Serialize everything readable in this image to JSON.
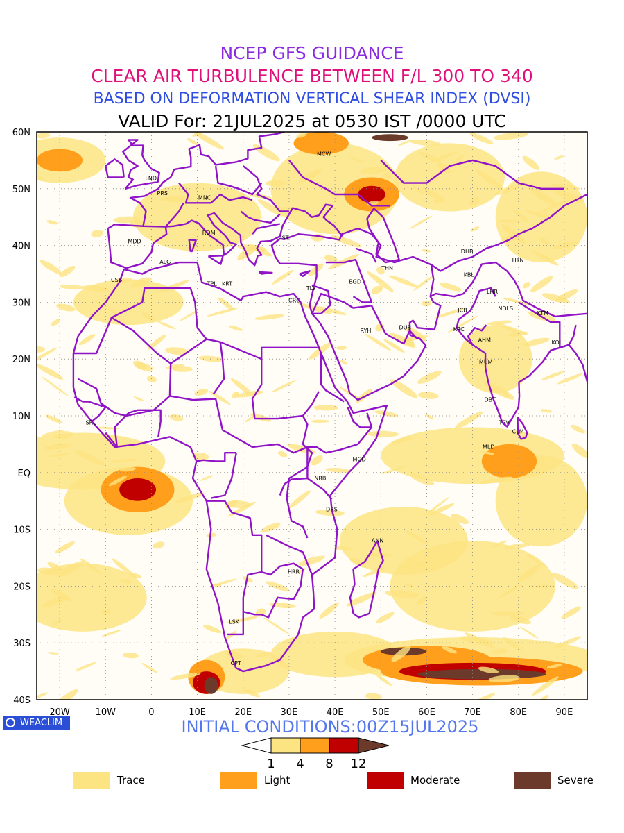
{
  "titles": {
    "line1": "NCEP GFS GUIDANCE",
    "line2": "CLEAR AIR TURBULENCE BETWEEN F/L 300 TO 340",
    "line3": "BASED ON DEFORMATION VERTICAL SHEAR INDEX (DVSI)",
    "line4": "VALID For: 21JUL2025 at 0530 IST /0000 UTC"
  },
  "colors": {
    "line1": "#8a2be2",
    "line2": "#e0107a",
    "line3": "#2f4de0",
    "line4": "#000000",
    "init": "#5577ee",
    "trace": "#fde482",
    "light": "#ff9f1c",
    "moderate": "#c00000",
    "severe": "#6b3a2a",
    "boundaries": "#9013c7"
  },
  "map": {
    "lat_labels": [
      "60N",
      "50N",
      "40N",
      "30N",
      "20N",
      "10N",
      "EQ",
      "10S",
      "20S",
      "30S",
      "40S"
    ],
    "lon_labels": [
      "20W",
      "10W",
      "0",
      "10E",
      "20E",
      "30E",
      "40E",
      "50E",
      "60E",
      "70E",
      "80E",
      "90E"
    ],
    "lat_range": [
      -40,
      60
    ],
    "lon_range": [
      -25,
      95
    ],
    "grid": true,
    "stations": [
      {
        "code": "MCW",
        "lon": 37.6,
        "lat": 55.8
      },
      {
        "code": "LND",
        "lon": -0.1,
        "lat": 51.5
      },
      {
        "code": "PRS",
        "lon": 2.4,
        "lat": 48.9
      },
      {
        "code": "MNC",
        "lon": 11.6,
        "lat": 48.1
      },
      {
        "code": "ROM",
        "lon": 12.5,
        "lat": 41.9
      },
      {
        "code": "MDD",
        "lon": -3.7,
        "lat": 40.4
      },
      {
        "code": "IST",
        "lon": 29.0,
        "lat": 41.0
      },
      {
        "code": "ALG",
        "lon": 3.0,
        "lat": 36.8
      },
      {
        "code": "CSB",
        "lon": -7.6,
        "lat": 33.6
      },
      {
        "code": "TPL",
        "lon": 13.2,
        "lat": 32.9
      },
      {
        "code": "KRT",
        "lon": 16.5,
        "lat": 32.9
      },
      {
        "code": "TLV",
        "lon": 34.8,
        "lat": 32.1
      },
      {
        "code": "CRO",
        "lon": 31.2,
        "lat": 30.0
      },
      {
        "code": "BGD",
        "lon": 44.4,
        "lat": 33.3
      },
      {
        "code": "THN",
        "lon": 51.4,
        "lat": 35.7
      },
      {
        "code": "RYH",
        "lon": 46.7,
        "lat": 24.7
      },
      {
        "code": "DUB",
        "lon": 55.3,
        "lat": 25.2
      },
      {
        "code": "DHB",
        "lon": 68.8,
        "lat": 38.6
      },
      {
        "code": "HTN",
        "lon": 79.9,
        "lat": 37.1
      },
      {
        "code": "KBL",
        "lon": 69.2,
        "lat": 34.5
      },
      {
        "code": "LHR",
        "lon": 74.3,
        "lat": 31.5
      },
      {
        "code": "NDLS",
        "lon": 77.2,
        "lat": 28.6
      },
      {
        "code": "JCB",
        "lon": 67.8,
        "lat": 28.3
      },
      {
        "code": "KTM",
        "lon": 85.3,
        "lat": 27.7
      },
      {
        "code": "KRC",
        "lon": 67.0,
        "lat": 24.9
      },
      {
        "code": "AHM",
        "lon": 72.6,
        "lat": 23.0
      },
      {
        "code": "KOL",
        "lon": 88.4,
        "lat": 22.6
      },
      {
        "code": "MUM",
        "lon": 72.9,
        "lat": 19.1
      },
      {
        "code": "DBT",
        "lon": 73.8,
        "lat": 12.5
      },
      {
        "code": "TRV",
        "lon": 76.9,
        "lat": 8.5
      },
      {
        "code": "CLM",
        "lon": 79.9,
        "lat": 6.9
      },
      {
        "code": "MLD",
        "lon": 73.5,
        "lat": 4.2
      },
      {
        "code": "SRL",
        "lon": -13.2,
        "lat": 8.5
      },
      {
        "code": "MGD",
        "lon": 45.3,
        "lat": 2.0
      },
      {
        "code": "NRB",
        "lon": 36.8,
        "lat": -1.3
      },
      {
        "code": "DRS",
        "lon": 39.3,
        "lat": -6.8
      },
      {
        "code": "ANN",
        "lon": 49.3,
        "lat": -12.3
      },
      {
        "code": "HRR",
        "lon": 31.0,
        "lat": -17.8
      },
      {
        "code": "LSK",
        "lon": 18.0,
        "lat": -26.6
      },
      {
        "code": "CPT",
        "lon": 18.4,
        "lat": -33.9
      }
    ]
  },
  "init_text": "INITIAL CONDITIONS:00Z15JUL2025",
  "colorbar": {
    "ticks": [
      "1",
      "4",
      "8",
      "12"
    ]
  },
  "legend": [
    {
      "label": "Trace",
      "key": "trace"
    },
    {
      "label": "Light",
      "key": "light"
    },
    {
      "label": "Moderate",
      "key": "moderate"
    },
    {
      "label": "Severe",
      "key": "severe"
    }
  ],
  "logo": {
    "text": "WEACLIM"
  }
}
